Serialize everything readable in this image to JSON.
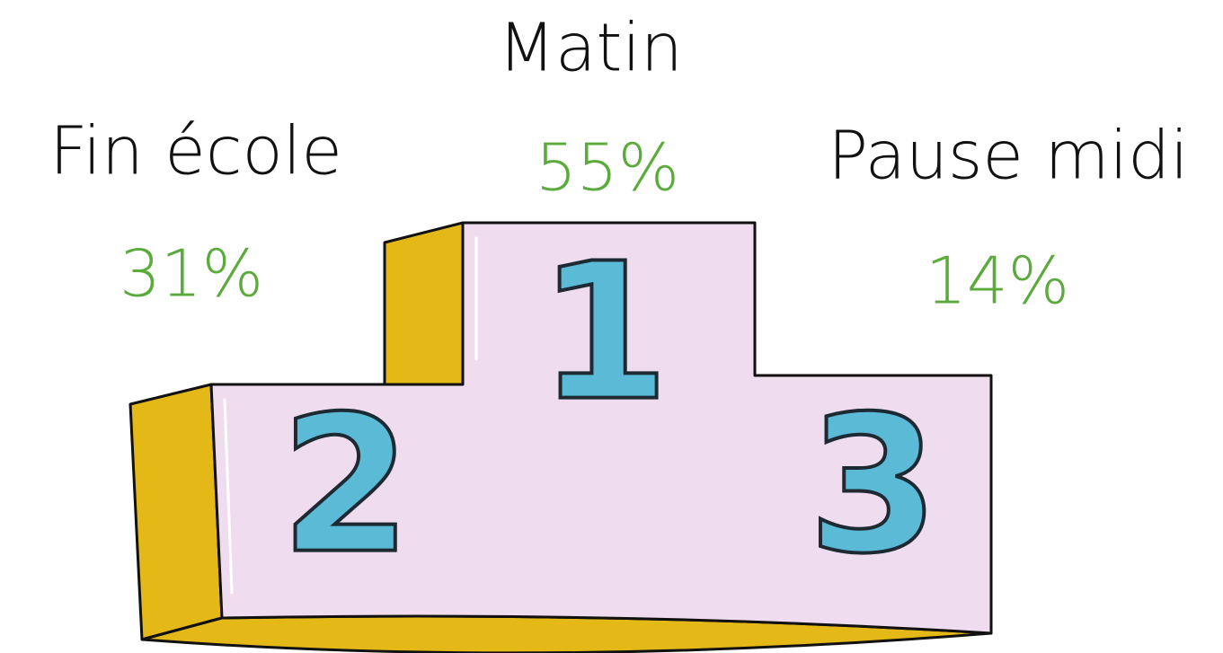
{
  "places": [
    {
      "rank": "1",
      "label": "Matin",
      "share": "55%"
    },
    {
      "rank": "2",
      "label": "Fin école",
      "share": "31%"
    },
    {
      "rank": "3",
      "label": "Pause midi",
      "share": "14%"
    }
  ]
}
